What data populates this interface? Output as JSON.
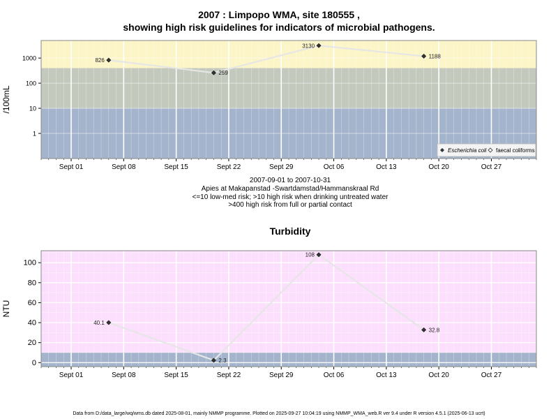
{
  "title_line1": "2007 : Limpopo WMA, site 180555 ,",
  "title_line2": "showing high risk guidelines for indicators of microbial pathogens.",
  "subtitle": [
    "2007-09-01 to 2007-10-31",
    "Apies at Makapanstad -Swartdamstad/Hammanskraal Rd",
    "<=10 low-med risk; >10 high risk when drinking untreated water",
    ">400 high risk from full or partial contact"
  ],
  "footer": "Data from D:/data_large/wq/wms.db dated 2025-08-01, mainly NMMP programme. Plotted on 2025-09-27 10:04:19 using NMMP_WMA_web.R ver 9.4 under R version 4.5.1 (2025-06-13 ucrt)",
  "colors": {
    "band_low": "#a3b4cc",
    "band_mid": "#c3cabd",
    "band_high": "#fcf5c8",
    "turb_band_low": "#a3b4cc",
    "turb_band_high": "#fcdffc",
    "line": "#e6e6e6",
    "grid": "#ffffff"
  },
  "chart_data": [
    {
      "type": "line",
      "title": "",
      "ylabel": "/100mL",
      "y_scale": "log10",
      "ylim": [
        0.1,
        5000
      ],
      "yticks": [
        1,
        10,
        100,
        1000
      ],
      "ytick_labels": [
        "1",
        "10",
        "100",
        "1000"
      ],
      "xlim": [
        "2007-08-28",
        "2007-11-02"
      ],
      "xticks": [
        "2007-09-01",
        "2007-09-08",
        "2007-09-15",
        "2007-09-22",
        "2007-09-29",
        "2007-10-06",
        "2007-10-13",
        "2007-10-20",
        "2007-10-27"
      ],
      "xtick_labels": [
        "Sept 01",
        "Sept 08",
        "Sept 15",
        "Sept 22",
        "Sept 29",
        "Oct 06",
        "Oct 13",
        "Oct 20",
        "Oct 27"
      ],
      "risk_bands": [
        {
          "from": 0.1,
          "to": 10,
          "color_key": "band_low"
        },
        {
          "from": 10,
          "to": 400,
          "color_key": "band_mid"
        },
        {
          "from": 400,
          "to": 5000,
          "color_key": "band_high"
        }
      ],
      "series": [
        {
          "name": "Escherichia coli",
          "marker": "filled-diamond",
          "x": [
            "2007-09-06",
            "2007-09-20",
            "2007-10-04",
            "2007-10-18"
          ],
          "y": [
            826,
            259,
            3130,
            1188
          ],
          "labels": [
            "826",
            "259",
            "3130",
            "1188"
          ]
        },
        {
          "name": "faecal coliforms",
          "marker": "open-diamond",
          "x": [],
          "y": [],
          "labels": []
        }
      ],
      "legend": "bottom-right"
    },
    {
      "type": "line",
      "title": "Turbidity",
      "ylabel": "NTU",
      "y_scale": "linear",
      "ylim": [
        -4,
        112
      ],
      "yticks": [
        0,
        20,
        40,
        60,
        80,
        100
      ],
      "ytick_labels": [
        "0",
        "20",
        "40",
        "60",
        "80",
        "100"
      ],
      "xlim": [
        "2007-08-28",
        "2007-11-02"
      ],
      "xticks": [
        "2007-09-01",
        "2007-09-08",
        "2007-09-15",
        "2007-09-22",
        "2007-09-29",
        "2007-10-06",
        "2007-10-13",
        "2007-10-20",
        "2007-10-27"
      ],
      "xtick_labels": [
        "Sept 01",
        "Sept 08",
        "Sept 15",
        "Sept 22",
        "Sept 29",
        "Oct 06",
        "Oct 13",
        "Oct 20",
        "Oct 27"
      ],
      "risk_bands": [
        {
          "from": -4,
          "to": 10,
          "color_key": "turb_band_low"
        },
        {
          "from": 10,
          "to": 112,
          "color_key": "turb_band_high"
        }
      ],
      "series": [
        {
          "name": "",
          "marker": "filled-diamond",
          "x": [
            "2007-09-06",
            "2007-09-20",
            "2007-10-04",
            "2007-10-18"
          ],
          "y": [
            40.1,
            2.3,
            108,
            32.8
          ],
          "labels": [
            "40.1",
            "2.3",
            "108",
            "32.8"
          ]
        }
      ]
    }
  ]
}
